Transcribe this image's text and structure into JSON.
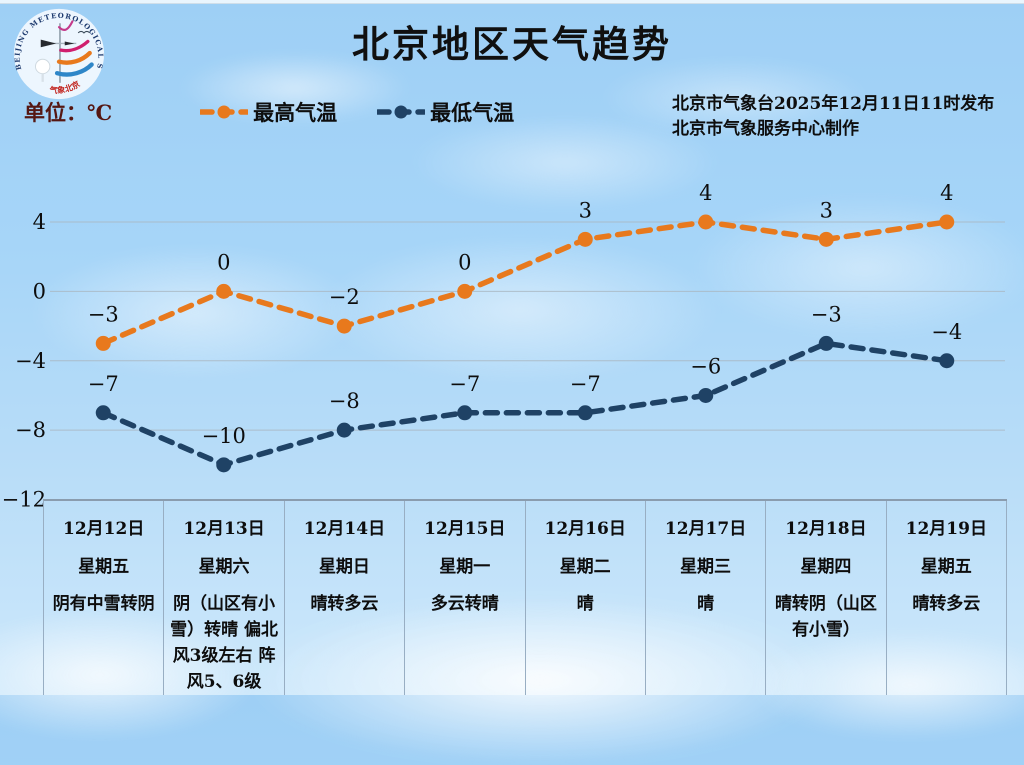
{
  "header": {
    "title": "北京地区天气趋势",
    "issued_line1": "北京市气象台2025年12月11日11时发布",
    "issued_line2": "北京市气象服务中心制作"
  },
  "legend": {
    "unit_label": "单位：℃",
    "max_label": "最高气温",
    "min_label": "最低气温"
  },
  "logo": {
    "ring_text": "BEIJING METEOROLOGICAL SERVICE",
    "cn_text": "气象北京"
  },
  "colors": {
    "max_line": "#e8791d",
    "min_line": "#1f4265",
    "grid_line": "#aab8c2",
    "unit_text": "#551712",
    "table_border": "#98aec3",
    "label_text": "#0d0d0d",
    "sky_top": "#9ecff5",
    "sky_bottom": "#cde8fb"
  },
  "chart_data": {
    "type": "line",
    "title": "北京地区天气趋势",
    "ylabel": "℃",
    "x_categories": [
      "12月12日",
      "12月13日",
      "12月14日",
      "12月15日",
      "12月16日",
      "12月17日",
      "12月18日",
      "12月19日"
    ],
    "series": [
      {
        "name": "最高气温",
        "color": "#e8791d",
        "values": [
          -3,
          0,
          -2,
          0,
          3,
          4,
          3,
          4
        ]
      },
      {
        "name": "最低气温",
        "color": "#1f4265",
        "values": [
          -7,
          -10,
          -8,
          -7,
          -7,
          -6,
          -3,
          -4
        ]
      }
    ],
    "yticks": [
      4,
      0,
      -4,
      -8,
      -12
    ],
    "ylim": [
      -12,
      6
    ],
    "grid": true,
    "line_style": "dashed",
    "marker": "circle",
    "legend_position": "top-left"
  },
  "table": {
    "days": [
      {
        "date": "12月12日",
        "weekday": "星期五",
        "weather": "阴有中雪转阴"
      },
      {
        "date": "12月13日",
        "weekday": "星期六",
        "weather": "阴（山区有小雪）转晴 偏北风3级左右 阵风5、6级"
      },
      {
        "date": "12月14日",
        "weekday": "星期日",
        "weather": "晴转多云"
      },
      {
        "date": "12月15日",
        "weekday": "星期一",
        "weather": "多云转晴"
      },
      {
        "date": "12月16日",
        "weekday": "星期二",
        "weather": "晴"
      },
      {
        "date": "12月17日",
        "weekday": "星期三",
        "weather": "晴"
      },
      {
        "date": "12月18日",
        "weekday": "星期四",
        "weather": "晴转阴（山区有小雪）"
      },
      {
        "date": "12月19日",
        "weekday": "星期五",
        "weather": "晴转多云"
      }
    ]
  }
}
